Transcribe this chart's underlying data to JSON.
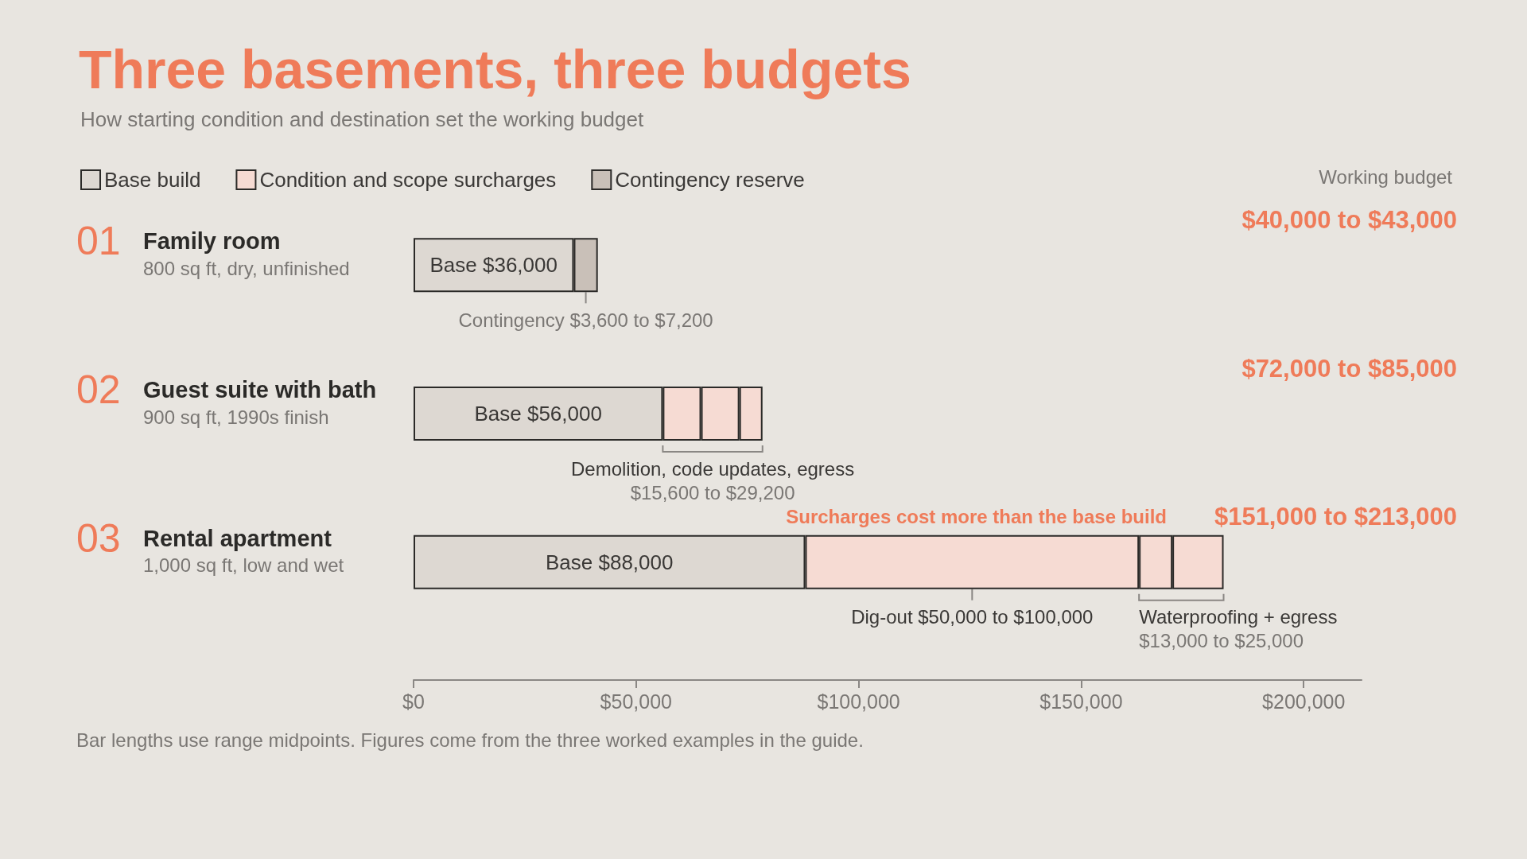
{
  "chart_data": {
    "type": "bar",
    "orientation": "horizontal",
    "stacked": true,
    "title": "Three basements, three budgets",
    "subtitle": "How starting condition and destination set the working budget",
    "categories": [
      "Family room",
      "Guest suite with bath",
      "Rental apartment"
    ],
    "series": [
      {
        "name": "Base build",
        "color": "#ddd8d2",
        "values": [
          36000,
          56000,
          88000
        ],
        "value_labels": [
          "Base $36,000",
          "Base $56,000",
          "Base $88,000"
        ]
      },
      {
        "name": "Condition and scope surcharges",
        "color": "#f6dbd3",
        "values": [
          null,
          8600,
          75000
        ]
      },
      {
        "color": "#f6dbd3",
        "values": [
          null,
          8600,
          7500
        ]
      },
      {
        "color": "#f6dbd3",
        "values": [
          null,
          5200,
          11500
        ]
      },
      {
        "name": "Contingency reserve",
        "color": "#c9c0b8",
        "values": [
          5400,
          null,
          null
        ]
      }
    ],
    "xlim": [
      0,
      213000
    ],
    "xticks": [
      {
        "value": 0,
        "label": "$0"
      },
      {
        "value": 50000,
        "label": "$50,000"
      },
      {
        "value": 100000,
        "label": "$100,000"
      },
      {
        "value": 150000,
        "label": "$150,000"
      },
      {
        "value": 200000,
        "label": "$200,000"
      }
    ],
    "grid": false,
    "legend": "top left",
    "annotations": [
      "Working budget",
      "Bar lengths use range midpoints. Figures come from the three worked examples in the guide.",
      "01",
      "800 sq ft, dry, unfinished",
      "$40,000 to $43,000",
      "Contingency $3,600 to $7,200",
      "02",
      "900 sq ft, 1990s finish",
      "$72,000 to $85,000",
      "Demolition, code updates, egress\n$15,600 to $29,200",
      "03",
      "1,000 sq ft, low and wet",
      "$151,000 to $213,000",
      "Surcharges cost more than the base build",
      "Dig-out $50,000 to $100,000",
      "Waterproofing + egress\n$13,000 to $25,000"
    ]
  }
}
